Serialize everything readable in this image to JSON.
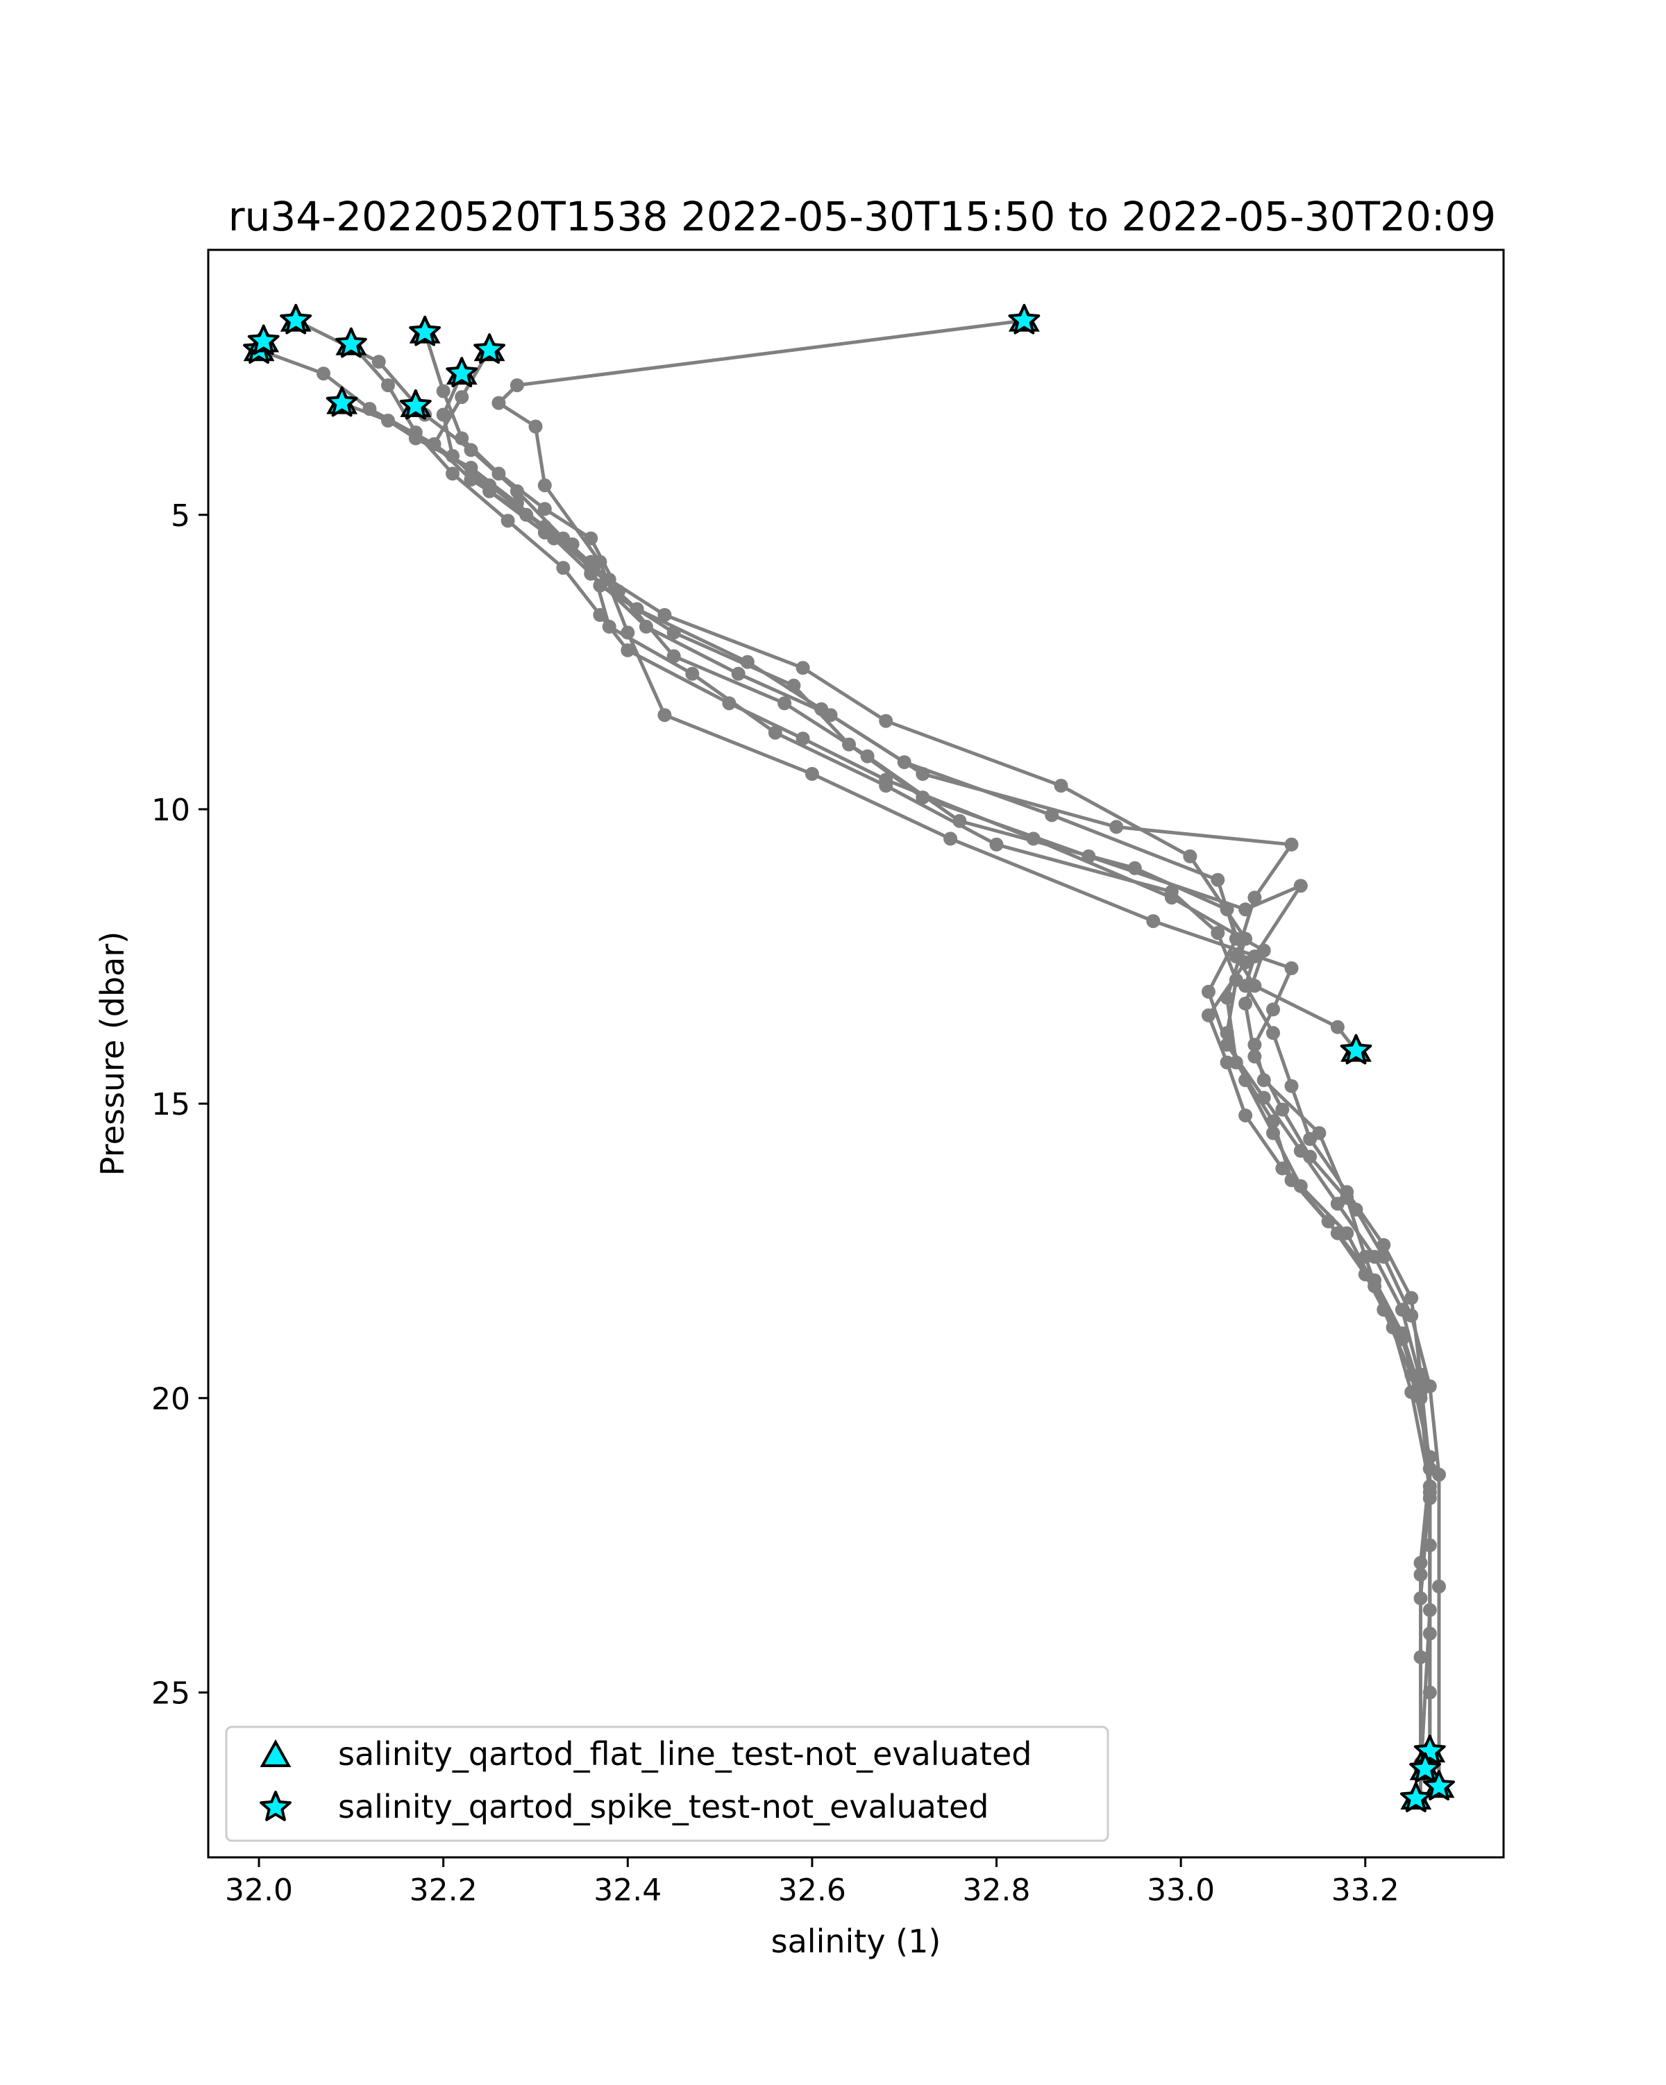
{
  "chart_data": {
    "type": "line",
    "title": "ru34-20220520T1538 2022-05-30T15:50 to 2022-05-30T20:09",
    "xlabel": "salinity (1)",
    "ylabel": "Pressure (dbar)",
    "xlim": [
      31.945,
      33.35
    ],
    "ylim": [
      27.8,
      0.5
    ],
    "y_inverted": true,
    "grid": false,
    "legend_position": "lower-left",
    "x_ticks": [
      "32.0",
      "32.2",
      "32.4",
      "32.6",
      "32.8",
      "33.0",
      "33.2"
    ],
    "y_ticks": [
      "5",
      "10",
      "15",
      "20",
      "25"
    ],
    "line_color": "#808080",
    "marker_color": "#00f0ff",
    "legend": [
      {
        "label": "salinity_qartod_flat_line_test-not_evaluated",
        "marker": "triangle"
      },
      {
        "label": "salinity_qartod_spike_test-not_evaluated",
        "marker": "star"
      }
    ],
    "series": [
      {
        "x": [
          32.83,
          32.28,
          32.26,
          32.3,
          32.31,
          32.37,
          32.4,
          32.44,
          32.6,
          32.75,
          32.97,
          33.12,
          33.1,
          33.08,
          33.09,
          33.15,
          33.18,
          33.2,
          33.22,
          33.25,
          33.27,
          33.27,
          33.27,
          33.27,
          33.27
        ],
        "y": [
          1.7,
          2.8,
          3.1,
          3.5,
          4.5,
          5.8,
          7.0,
          8.4,
          9.4,
          10.5,
          11.9,
          12.7,
          13.4,
          14.0,
          14.6,
          15.5,
          16.6,
          17.6,
          18.5,
          19.6,
          21.0,
          22.5,
          24.0,
          25.0,
          26.0
        ]
      },
      {
        "x": [
          32.04,
          32.13,
          32.18,
          32.23,
          32.28,
          32.33,
          32.38,
          32.44,
          32.59,
          32.68,
          32.87,
          33.01,
          33.07,
          33.05,
          33.06,
          33.1,
          33.12,
          33.17,
          33.21,
          33.24,
          33.26,
          33.27,
          33.26,
          33.26,
          33.26
        ],
        "y": [
          1.7,
          2.4,
          3.3,
          3.9,
          4.6,
          5.4,
          6.1,
          6.7,
          7.6,
          8.5,
          9.6,
          10.8,
          12.2,
          13.2,
          14.3,
          15.3,
          16.3,
          17.2,
          18.0,
          18.9,
          19.9,
          21.2,
          22.8,
          24.4,
          26.3
        ]
      },
      {
        "x": [
          32.1,
          32.14,
          32.17,
          32.21,
          32.27,
          32.33,
          32.37,
          32.4,
          32.51,
          32.59,
          32.68,
          32.84,
          32.99,
          33.09,
          33.07,
          33.08,
          33.11,
          33.14,
          33.19,
          33.22,
          33.25,
          33.27,
          33.28,
          33.28,
          33.28
        ],
        "y": [
          2.1,
          2.8,
          3.6,
          4.3,
          5.1,
          5.9,
          6.7,
          7.3,
          8.2,
          8.8,
          9.5,
          10.5,
          11.5,
          12.4,
          13.3,
          14.2,
          15.1,
          15.9,
          16.8,
          17.6,
          18.6,
          19.8,
          21.3,
          23.2,
          26.6
        ]
      },
      {
        "x": [
          32.0,
          32.07,
          32.12,
          32.19,
          32.25,
          32.31,
          32.36,
          32.41,
          32.53,
          32.61,
          32.7,
          32.86,
          33.04,
          33.06,
          33.03,
          33.05,
          33.09,
          33.13,
          33.17,
          33.21,
          33.24,
          33.26,
          33.27,
          33.26,
          33.26
        ],
        "y": [
          2.2,
          2.6,
          3.2,
          3.8,
          4.5,
          5.2,
          5.9,
          6.6,
          7.5,
          8.3,
          9.2,
          10.1,
          11.2,
          12.2,
          13.1,
          14.0,
          14.9,
          15.8,
          16.7,
          17.6,
          18.5,
          19.7,
          21.2,
          23.0,
          26.8
        ]
      },
      {
        "x": [
          32.18,
          32.2,
          32.22,
          32.26,
          32.31,
          32.36,
          32.39,
          32.45,
          32.57,
          32.66,
          32.76,
          32.95,
          33.05,
          33.07,
          33.03,
          33.05,
          33.07,
          33.11,
          33.16,
          33.2,
          33.23,
          33.25,
          33.27,
          33.26,
          33.26
        ],
        "y": [
          1.9,
          2.9,
          3.7,
          4.3,
          4.9,
          5.4,
          6.3,
          7.4,
          8.2,
          9.1,
          10.2,
          11.0,
          11.7,
          12.6,
          13.5,
          14.3,
          15.2,
          16.1,
          17.0,
          17.9,
          18.8,
          19.9,
          21.5,
          23.4,
          26.2
        ]
      },
      {
        "x": [
          32.22,
          32.2,
          32.21,
          32.25,
          32.31,
          32.36,
          32.38,
          32.47,
          32.56,
          32.68,
          32.8,
          32.99,
          33.04,
          33.06,
          33.05,
          33.07,
          33.1,
          33.13,
          33.18,
          33.21,
          33.24,
          33.26,
          33.27,
          33.27,
          33.26
        ],
        "y": [
          2.6,
          3.3,
          4.0,
          4.6,
          5.3,
          5.8,
          6.9,
          7.7,
          8.7,
          9.6,
          10.6,
          11.4,
          12.1,
          12.9,
          13.8,
          14.6,
          15.5,
          16.4,
          17.2,
          18.1,
          19.0,
          20.0,
          21.7,
          23.6,
          26.4
        ]
      },
      {
        "x": [
          32.25,
          32.22,
          32.19,
          32.23,
          32.29,
          32.34,
          32.37,
          32.45,
          32.58,
          32.64,
          32.72,
          32.9,
          33.07,
          33.13,
          33.08,
          33.07,
          33.1,
          33.12,
          33.14,
          33.18,
          33.22,
          33.25,
          33.26,
          33.27,
          33.27
        ],
        "y": [
          2.2,
          3.0,
          3.8,
          4.4,
          5.0,
          5.5,
          6.2,
          7.0,
          7.9,
          8.9,
          9.8,
          10.8,
          11.7,
          11.3,
          12.5,
          13.0,
          13.8,
          14.7,
          15.6,
          16.5,
          17.4,
          18.3,
          19.6,
          21.6,
          26.0
        ]
      },
      {
        "x": [
          32.09,
          32.14,
          32.17,
          32.23,
          32.28,
          32.32,
          32.36,
          32.42,
          32.52,
          32.62,
          32.72,
          32.93,
          33.12,
          33.08,
          33.06,
          33.08,
          33.17,
          33.19
        ],
        "y": [
          3.1,
          3.4,
          3.7,
          4.2,
          4.8,
          5.4,
          6.0,
          6.9,
          7.7,
          8.4,
          9.4,
          10.3,
          10.6,
          11.5,
          12.5,
          13.0,
          13.7,
          14.1
        ]
      }
    ],
    "flagged_points": [
      {
        "x": 32.83,
        "y": 1.7
      },
      {
        "x": 32.04,
        "y": 1.7
      },
      {
        "x": 32.1,
        "y": 2.1
      },
      {
        "x": 32.18,
        "y": 1.9
      },
      {
        "x": 32.25,
        "y": 2.2
      },
      {
        "x": 32.22,
        "y": 2.6
      },
      {
        "x": 32.0,
        "y": 2.2
      },
      {
        "x": 32.005,
        "y": 2.05
      },
      {
        "x": 32.09,
        "y": 3.1
      },
      {
        "x": 32.17,
        "y": 3.15
      },
      {
        "x": 33.19,
        "y": 14.1
      },
      {
        "x": 33.27,
        "y": 26.0
      },
      {
        "x": 33.265,
        "y": 26.3
      },
      {
        "x": 33.28,
        "y": 26.6
      },
      {
        "x": 33.255,
        "y": 26.8
      }
    ]
  }
}
